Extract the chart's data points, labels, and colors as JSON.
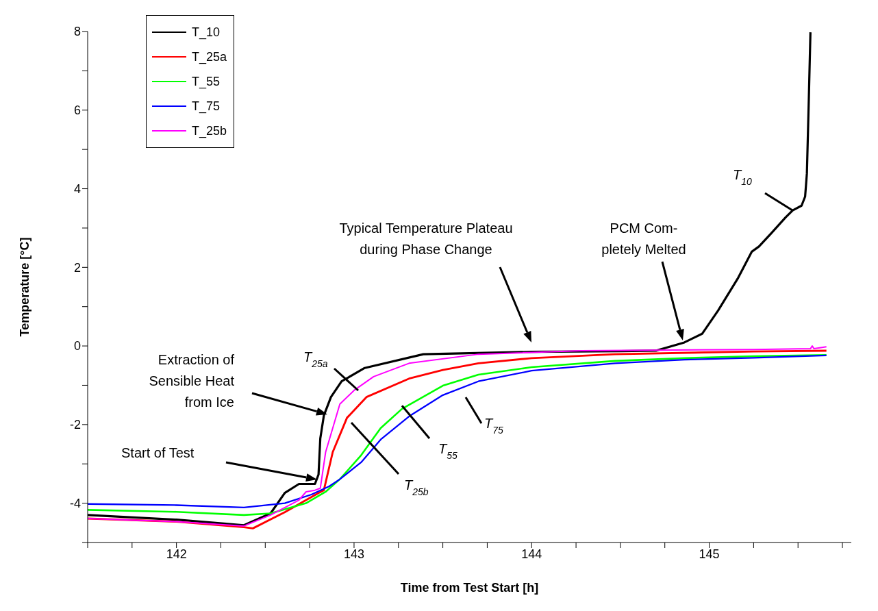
{
  "chart_data": {
    "type": "line",
    "xlabel": "Time from Test Start  [h]",
    "ylabel": "Temperature  [°C]",
    "xlim": [
      141.5,
      145.8
    ],
    "ylim": [
      -5,
      8
    ],
    "xticks": [
      {
        "value": 141.5,
        "label": null
      },
      {
        "value": 141.75,
        "label": null
      },
      142,
      {
        "value": 142.25,
        "label": null
      },
      {
        "value": 142.5,
        "label": null
      },
      {
        "value": 142.75,
        "label": null
      },
      143,
      {
        "value": 143.25,
        "label": null
      },
      {
        "value": 143.5,
        "label": null
      },
      {
        "value": 143.75,
        "label": null
      },
      144,
      {
        "value": 144.25,
        "label": null
      },
      {
        "value": 144.5,
        "label": null
      },
      {
        "value": 144.75,
        "label": null
      },
      145,
      {
        "value": 145.25,
        "label": null
      },
      {
        "value": 145.5,
        "label": null
      },
      {
        "value": 145.75,
        "label": null
      }
    ],
    "yticks": [
      {
        "value": -5,
        "label": null
      },
      -4,
      {
        "value": -3,
        "label": null
      },
      -2,
      {
        "value": -1,
        "label": null
      },
      0,
      {
        "value": 1,
        "label": null
      },
      2,
      {
        "value": 3,
        "label": null
      },
      4,
      {
        "value": 5,
        "label": null
      },
      6,
      {
        "value": 7,
        "label": null
      },
      8
    ],
    "legend": "top left",
    "marker": "none",
    "series": [
      {
        "name": "T_10",
        "color": "#000000",
        "x": [
          141.5,
          142.0,
          142.38,
          142.53,
          142.61,
          142.69,
          142.78,
          142.8,
          142.81,
          142.83,
          142.87,
          142.93,
          143.06,
          143.39,
          144.0,
          144.5,
          144.7,
          144.86,
          144.96,
          145.05,
          145.16,
          145.24,
          145.28,
          145.35,
          145.43,
          145.47,
          145.52,
          145.54,
          145.55,
          145.56,
          145.57
        ],
        "values": [
          -4.3,
          -4.42,
          -4.56,
          -4.26,
          -3.74,
          -3.51,
          -3.51,
          -3.27,
          -2.35,
          -1.77,
          -1.3,
          -0.9,
          -0.56,
          -0.21,
          -0.15,
          -0.13,
          -0.12,
          0.09,
          0.31,
          0.9,
          1.71,
          2.4,
          2.53,
          2.87,
          3.27,
          3.45,
          3.57,
          3.8,
          4.39,
          6.13,
          7.98
        ]
      },
      {
        "name": "T_25a",
        "color": "#ff0000",
        "x": [
          141.5,
          142.0,
          142.38,
          142.43,
          142.61,
          142.73,
          142.8,
          142.83,
          142.88,
          142.96,
          143.07,
          143.31,
          143.5,
          143.7,
          144.0,
          144.47,
          145.25,
          145.66
        ],
        "values": [
          -4.39,
          -4.47,
          -4.61,
          -4.64,
          -4.23,
          -3.92,
          -3.74,
          -3.67,
          -2.7,
          -1.83,
          -1.3,
          -0.83,
          -0.61,
          -0.44,
          -0.31,
          -0.21,
          -0.14,
          -0.12
        ]
      },
      {
        "name": "T_55",
        "color": "#00ff00",
        "x": [
          141.5,
          142.0,
          142.38,
          142.53,
          142.73,
          142.84,
          142.92,
          143.04,
          143.15,
          143.27,
          143.5,
          143.7,
          144.0,
          144.47,
          144.86,
          145.25,
          145.66
        ],
        "values": [
          -4.17,
          -4.22,
          -4.3,
          -4.26,
          -4.0,
          -3.71,
          -3.39,
          -2.78,
          -2.09,
          -1.6,
          -1.01,
          -0.73,
          -0.54,
          -0.38,
          -0.31,
          -0.26,
          -0.23
        ]
      },
      {
        "name": "T_75",
        "color": "#0000ff",
        "x": [
          141.5,
          142.0,
          142.38,
          142.61,
          142.76,
          142.86,
          142.92,
          143.04,
          143.15,
          143.31,
          143.5,
          143.7,
          144.0,
          144.47,
          144.86,
          145.25,
          145.66
        ],
        "values": [
          -4.02,
          -4.05,
          -4.11,
          -4.0,
          -3.78,
          -3.57,
          -3.39,
          -2.96,
          -2.38,
          -1.79,
          -1.25,
          -0.9,
          -0.63,
          -0.44,
          -0.35,
          -0.3,
          -0.24
        ]
      },
      {
        "name": "T_25b",
        "color": "#ff00ff",
        "x": [
          141.5,
          142.0,
          142.38,
          142.53,
          142.69,
          142.73,
          142.78,
          142.81,
          142.84,
          142.92,
          143.0,
          143.11,
          143.31,
          143.7,
          144.28,
          145.25,
          145.57,
          145.58,
          145.59,
          145.66
        ],
        "values": [
          -4.39,
          -4.47,
          -4.58,
          -4.3,
          -3.92,
          -3.71,
          -3.67,
          -3.62,
          -2.7,
          -1.48,
          -1.13,
          -0.78,
          -0.44,
          -0.21,
          -0.12,
          -0.09,
          -0.07,
          0.0,
          -0.07,
          -0.02
        ]
      }
    ],
    "annotations": [
      "Start of Test",
      "Extraction of\nSensible Heat\nfrom Ice",
      "T$_{25a}$",
      "T$_{25b}$",
      {
        "text": "T$_{55}$",
        "x": 143.27,
        "y": -1.52
      },
      "T$_{75}$",
      "Typical Temperature Plateau\nduring Phase Change",
      "PCM Com-\npletely Melted",
      "T$_{10}$"
    ]
  }
}
